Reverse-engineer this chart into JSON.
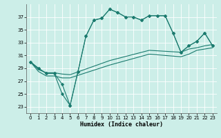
{
  "xlabel": "Humidex (Indice chaleur)",
  "bg_color": "#cceee8",
  "line_color": "#1a7a6e",
  "xlim": [
    -0.5,
    23.5
  ],
  "ylim": [
    22,
    39
  ],
  "yticks": [
    23,
    25,
    27,
    29,
    31,
    33,
    35,
    37
  ],
  "xticks": [
    0,
    1,
    2,
    3,
    4,
    5,
    6,
    7,
    8,
    9,
    10,
    11,
    12,
    13,
    14,
    15,
    16,
    17,
    18,
    19,
    20,
    21,
    22,
    23
  ],
  "line1_x": [
    0,
    1,
    2,
    3,
    4,
    5,
    6,
    7,
    8,
    9,
    10,
    11,
    12,
    13,
    14,
    15,
    16,
    17,
    18,
    19,
    20,
    21,
    22,
    23
  ],
  "line1_y": [
    30.0,
    29.0,
    28.2,
    28.2,
    26.5,
    23.2,
    28.5,
    34.0,
    36.5,
    36.8,
    38.2,
    37.7,
    37.0,
    37.0,
    36.5,
    37.2,
    37.2,
    37.2,
    34.5,
    31.5,
    32.5,
    33.2,
    34.5,
    32.5
  ],
  "line2_x": [
    0,
    1,
    2,
    3,
    4,
    5,
    6,
    7,
    8,
    9,
    10,
    11,
    12,
    13,
    14,
    15,
    16,
    17,
    18,
    19,
    20,
    21,
    22,
    23
  ],
  "line2_y": [
    30.0,
    29.0,
    28.2,
    28.2,
    25.0,
    23.2,
    28.5,
    34.0,
    36.5,
    36.8,
    38.2,
    37.7,
    37.0,
    37.0,
    36.5,
    37.2,
    37.2,
    37.2,
    34.5,
    31.5,
    32.5,
    33.2,
    34.5,
    32.5
  ],
  "line3_x": [
    0,
    1,
    2,
    3,
    4,
    5,
    10,
    15,
    19,
    20,
    21,
    22,
    23
  ],
  "line3_y": [
    30.0,
    28.8,
    28.3,
    28.3,
    28.1,
    28.0,
    30.2,
    31.8,
    31.5,
    32.0,
    32.2,
    32.5,
    32.7
  ],
  "line4_x": [
    0,
    1,
    2,
    3,
    4,
    5,
    10,
    15,
    19,
    20,
    21,
    22,
    23
  ],
  "line4_y": [
    30.0,
    28.5,
    27.8,
    27.8,
    27.5,
    27.5,
    29.5,
    31.2,
    30.8,
    31.2,
    31.8,
    32.0,
    32.2
  ],
  "grid_color": "#ffffff",
  "markersize": 2.5
}
